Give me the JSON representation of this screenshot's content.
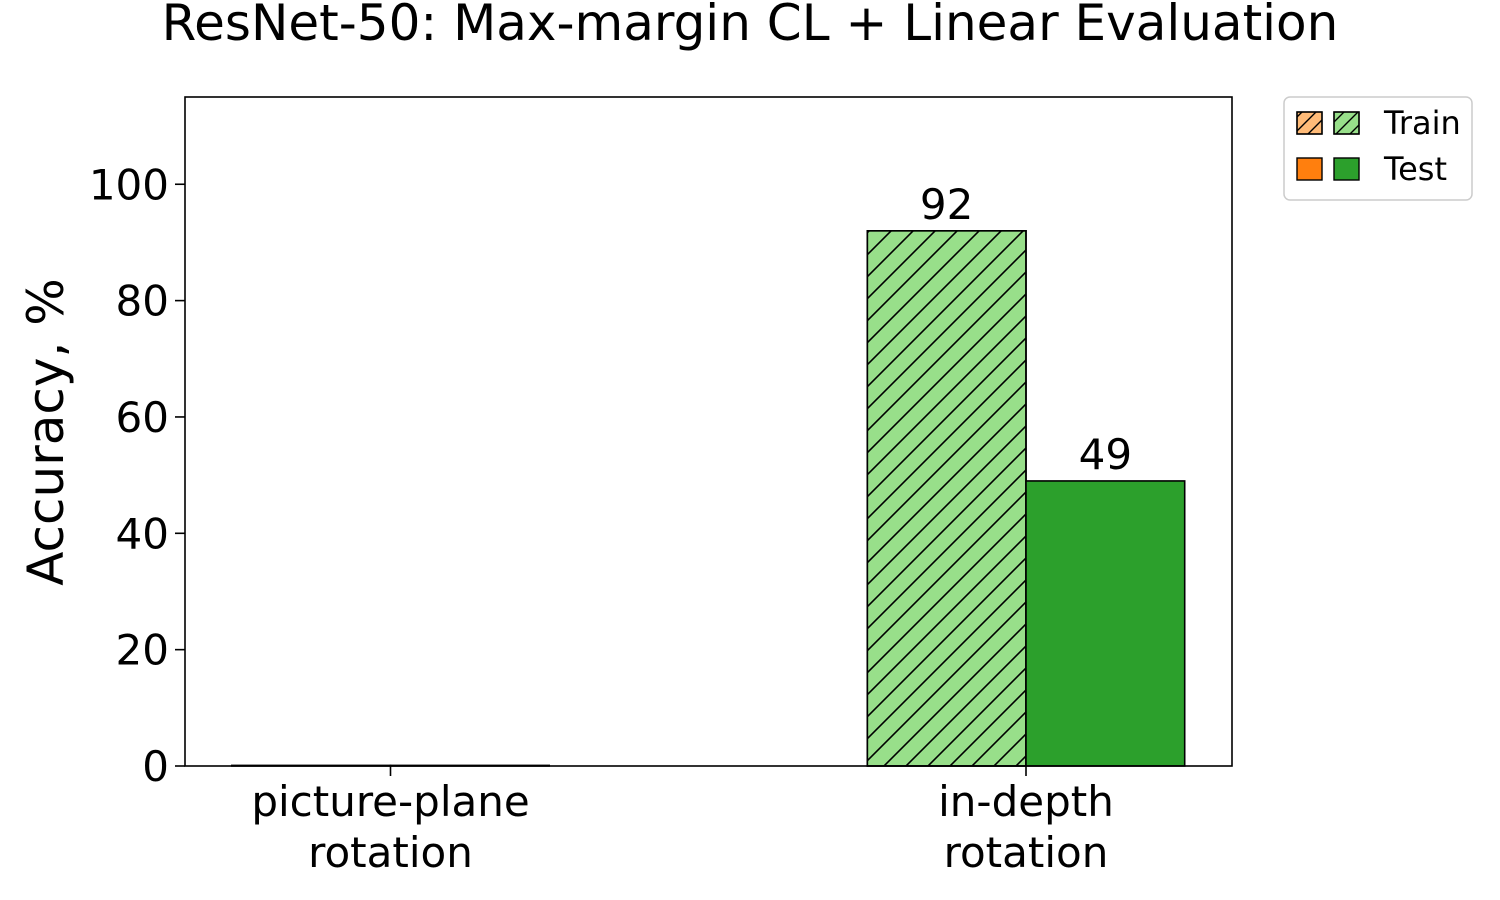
{
  "chart_data": {
    "type": "bar",
    "title": "ResNet-50: Max-margin CL + Linear Evaluation",
    "xlabel": "",
    "ylabel": "Accuracy, %",
    "ylim": [
      0,
      115
    ],
    "yticks": [
      0,
      20,
      40,
      60,
      80,
      100
    ],
    "categories": [
      {
        "lines": [
          "picture-plane",
          "rotation"
        ]
      },
      {
        "lines": [
          "in-depth",
          "rotation"
        ]
      }
    ],
    "series": [
      {
        "name": "Train",
        "hatch": "diagonal",
        "values": [
          0,
          92
        ],
        "labels": [
          "",
          "92"
        ],
        "colors": [
          "#ffbb78",
          "#98df8a"
        ]
      },
      {
        "name": "Test",
        "hatch": "none",
        "values": [
          0,
          49
        ],
        "labels": [
          "",
          "49"
        ],
        "colors": [
          "#ff7f0e",
          "#2ca02c"
        ]
      }
    ],
    "legend": {
      "placement": "outside-top-right",
      "entries": [
        {
          "label": "Train",
          "swatches": [
            "#ffbb78",
            "#98df8a"
          ],
          "hatch": "diagonal"
        },
        {
          "label": "Test",
          "swatches": [
            "#ff7f0e",
            "#2ca02c"
          ],
          "hatch": "none"
        }
      ]
    },
    "grid": false
  }
}
